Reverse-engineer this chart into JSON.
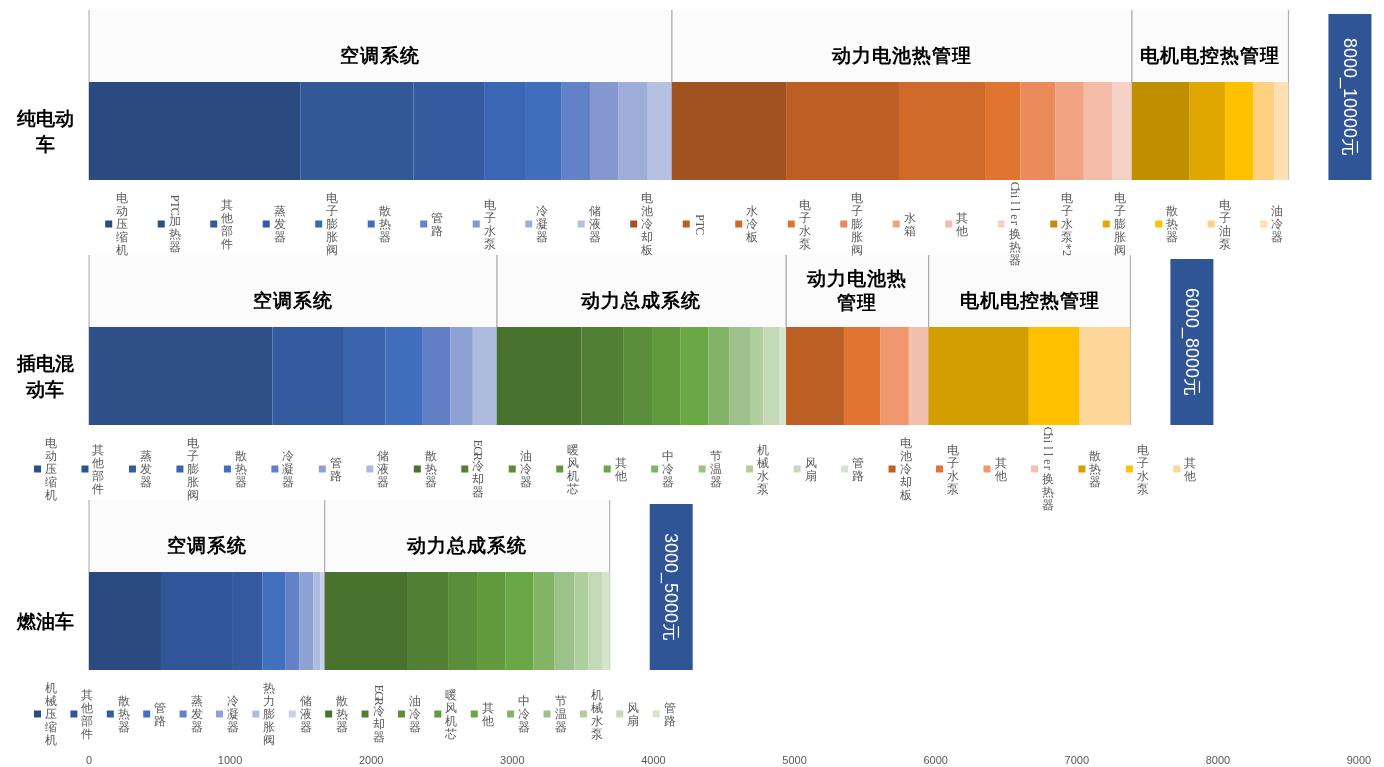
{
  "chart_data": {
    "type": "bar",
    "orientation": "horizontal",
    "stacked": true,
    "legend": "bottom",
    "categories": [
      "纯电动车",
      "插电混动车",
      "燃油车"
    ],
    "xlim": [
      0,
      9000
    ],
    "xticks": [
      0,
      1000,
      2000,
      3000,
      4000,
      5000,
      6000,
      7000,
      8000,
      9000
    ],
    "series": [
      {
        "name": "电动压缩机",
        "color": "#2b4a80",
        "values": [
          1500,
          null,
          null
        ]
      },
      {
        "name": "PTC加热器",
        "color": "#2c4e88",
        "values": [
          null,
          null,
          null
        ]
      },
      {
        "name": "其他部件",
        "color": "#325896",
        "values": [
          800,
          null,
          null
        ]
      },
      {
        "name": "蒸发器",
        "color": "#345ba0",
        "values": [
          500,
          null,
          null
        ]
      },
      {
        "name": "电子膨胀阀",
        "color": "#3b66b3",
        "values": [
          290,
          null,
          null
        ]
      },
      {
        "name": "散热器",
        "color": "#416fbe",
        "values": [
          260,
          null,
          null
        ]
      },
      {
        "name": "管路",
        "color": "#6381c7",
        "values": [
          200,
          null,
          null
        ]
      },
      {
        "name": "电子水泵",
        "color": "#8599d0",
        "values": [
          200,
          null,
          null
        ]
      },
      {
        "name": "冷凝器",
        "color": "#9eaed8",
        "values": [
          210,
          null,
          null
        ]
      },
      {
        "name": "储液器",
        "color": "#b5c1e1",
        "values": [
          170,
          null,
          null
        ]
      },
      {
        "name": "电池冷却板",
        "color": "#a0521f",
        "values": [
          810,
          null,
          null
        ]
      },
      {
        "name": "PTC",
        "color": "#bd5f25",
        "values": [
          800,
          null,
          null
        ]
      },
      {
        "name": "水冷板",
        "color": "#d06a2b",
        "values": [
          610,
          null,
          null
        ]
      },
      {
        "name": "电子水泵",
        "color": "#e07531",
        "values": [
          250,
          null,
          null
        ]
      },
      {
        "name": "电子膨胀阀",
        "color": "#eb8a5a",
        "values": [
          250,
          null,
          null
        ]
      },
      {
        "name": "水箱",
        "color": "#f0a484",
        "values": [
          200,
          null,
          null
        ]
      },
      {
        "name": "其他",
        "color": "#f3bca7",
        "values": [
          200,
          null,
          null
        ]
      },
      {
        "name": "Chiller换热器",
        "color": "#f5d2c5",
        "values": [
          140,
          null,
          null
        ]
      },
      {
        "name": "电子水泵*2",
        "color": "#bf8f00",
        "values": [
          410,
          null,
          null
        ]
      },
      {
        "name": "电子膨胀阀",
        "color": "#dfa700",
        "values": [
          250,
          null,
          null
        ]
      },
      {
        "name": "散热器",
        "color": "#ffc000",
        "values": [
          200,
          null,
          null
        ]
      },
      {
        "name": "电子油泵",
        "color": "#ffd07f",
        "values": [
          150,
          null,
          null
        ]
      },
      {
        "name": "油冷器",
        "color": "#ffe0b3",
        "values": [
          100,
          null,
          null
        ]
      },
      {
        "name": "电动压缩机",
        "color": "#2e4f87",
        "values": [
          null,
          1300,
          null
        ]
      },
      {
        "name": "其他部件",
        "color": "#2f5390",
        "values": [
          null,
          null,
          null
        ]
      },
      {
        "name": "蒸发器",
        "color": "#345ba0",
        "values": [
          null,
          500,
          null
        ]
      },
      {
        "name": "电子膨胀阀",
        "color": "#3a64ac",
        "values": [
          null,
          300,
          null
        ]
      },
      {
        "name": "散热器",
        "color": "#416fbe",
        "values": [
          null,
          260,
          null
        ]
      },
      {
        "name": "冷凝器",
        "color": "#6380c6",
        "values": [
          null,
          200,
          null
        ]
      },
      {
        "name": "管路",
        "color": "#8ea1d4",
        "values": [
          null,
          160,
          null
        ]
      },
      {
        "name": "储液器",
        "color": "#adbbde",
        "values": [
          null,
          170,
          null
        ]
      },
      {
        "name": "散热器",
        "color": "#4a722f",
        "values": [
          null,
          600,
          null
        ]
      },
      {
        "name": "EGR冷却器",
        "color": "#518035",
        "values": [
          null,
          300,
          null
        ]
      },
      {
        "name": "油冷器",
        "color": "#5a8e3b",
        "values": [
          null,
          200,
          null
        ]
      },
      {
        "name": "暖风机芯",
        "color": "#619a3f",
        "values": [
          null,
          200,
          null
        ]
      },
      {
        "name": "其他",
        "color": "#6aa745",
        "values": [
          null,
          200,
          null
        ]
      },
      {
        "name": "中冷器",
        "color": "#82b366",
        "values": [
          null,
          150,
          null
        ]
      },
      {
        "name": "节温器",
        "color": "#9cc18a",
        "values": [
          null,
          150,
          null
        ]
      },
      {
        "name": "机械水泵",
        "color": "#afcf9e",
        "values": [
          null,
          90,
          null
        ]
      },
      {
        "name": "风扇",
        "color": "#c3d9b7",
        "values": [
          null,
          110,
          null
        ]
      },
      {
        "name": "管路",
        "color": "#d5e5cc",
        "values": [
          null,
          50,
          null
        ]
      },
      {
        "name": "电池冷却板",
        "color": "#bb5f25",
        "values": [
          null,
          410,
          null
        ]
      },
      {
        "name": "电子水泵",
        "color": "#e07531",
        "values": [
          null,
          260,
          null
        ]
      },
      {
        "name": "其他",
        "color": "#f0976f",
        "values": [
          null,
          200,
          null
        ]
      },
      {
        "name": "Chiller换热器",
        "color": "#f3bfae",
        "values": [
          null,
          140,
          null
        ]
      },
      {
        "name": "散热器",
        "color": "#d39f00",
        "values": [
          null,
          710,
          null
        ]
      },
      {
        "name": "电子水泵",
        "color": "#ffc000",
        "values": [
          null,
          360,
          null
        ]
      },
      {
        "name": "其他",
        "color": "#ffd699",
        "values": [
          null,
          360,
          null
        ]
      },
      {
        "name": "机械压缩机",
        "color": "#2b4a80",
        "values": [
          null,
          null,
          510
        ]
      },
      {
        "name": "其他部件",
        "color": "#30569a",
        "values": [
          null,
          null,
          510
        ]
      },
      {
        "name": "散热器",
        "color": "#345ba0",
        "values": [
          null,
          null,
          210
        ]
      },
      {
        "name": "管路",
        "color": "#4170bd",
        "values": [
          null,
          null,
          160
        ]
      },
      {
        "name": "蒸发器",
        "color": "#6381c7",
        "values": [
          null,
          null,
          100
        ]
      },
      {
        "name": "冷凝器",
        "color": "#8ea1d4",
        "values": [
          null,
          null,
          100
        ]
      },
      {
        "name": "热力膨胀阀",
        "color": "#adbbde",
        "values": [
          null,
          null,
          50
        ]
      },
      {
        "name": "储液器",
        "color": "#c8d1ea",
        "values": [
          null,
          null,
          30
        ]
      },
      {
        "name": "散热器",
        "color": "#4a722f",
        "values": [
          null,
          null,
          590
        ]
      },
      {
        "name": "EGR冷却器",
        "color": "#518035",
        "values": [
          null,
          null,
          290
        ]
      },
      {
        "name": "油冷器",
        "color": "#5a8e3b",
        "values": [
          null,
          null,
          200
        ]
      },
      {
        "name": "暖风机芯",
        "color": "#619a3f",
        "values": [
          null,
          null,
          200
        ]
      },
      {
        "name": "其他",
        "color": "#6aa745",
        "values": [
          null,
          null,
          200
        ]
      },
      {
        "name": "中冷器",
        "color": "#82b366",
        "values": [
          null,
          null,
          150
        ]
      },
      {
        "name": "节温器",
        "color": "#9cc18a",
        "values": [
          null,
          null,
          140
        ]
      },
      {
        "name": "机械水泵",
        "color": "#afcf9e",
        "values": [
          null,
          null,
          100
        ]
      },
      {
        "name": "风扇",
        "color": "#c3d9b7",
        "values": [
          null,
          null,
          100
        ]
      },
      {
        "name": "管路",
        "color": "#d5e5cc",
        "values": [
          null,
          null,
          50
        ]
      }
    ],
    "bands": [
      {
        "axis": "x",
        "from": 0,
        "to": 4130,
        "label": "空调系统"
      },
      {
        "axis": "x",
        "from": 4130,
        "to": 7390,
        "label": "动力电池热管理"
      },
      {
        "axis": "x",
        "from": 7390,
        "to": 8500,
        "label": "电机电控热管理"
      },
      {
        "axis": "x",
        "from": 0,
        "to": 2890,
        "label": "空调系统"
      },
      {
        "axis": "x",
        "from": 2890,
        "to": 4940,
        "label": "动力总成系统"
      },
      {
        "axis": "x",
        "from": 4940,
        "to": 5950,
        "label": "动力电池热管理"
      },
      {
        "axis": "x",
        "from": 5950,
        "to": 7380,
        "label": "电机电控热管理"
      },
      {
        "axis": "x",
        "from": 0,
        "to": 1670,
        "label": "空调系统"
      },
      {
        "axis": "x",
        "from": 1670,
        "to": 3690,
        "label": "动力总成系统"
      }
    ],
    "annotations": [
      "8000_10000元",
      "6000_8000元",
      "3000_5000元"
    ]
  }
}
